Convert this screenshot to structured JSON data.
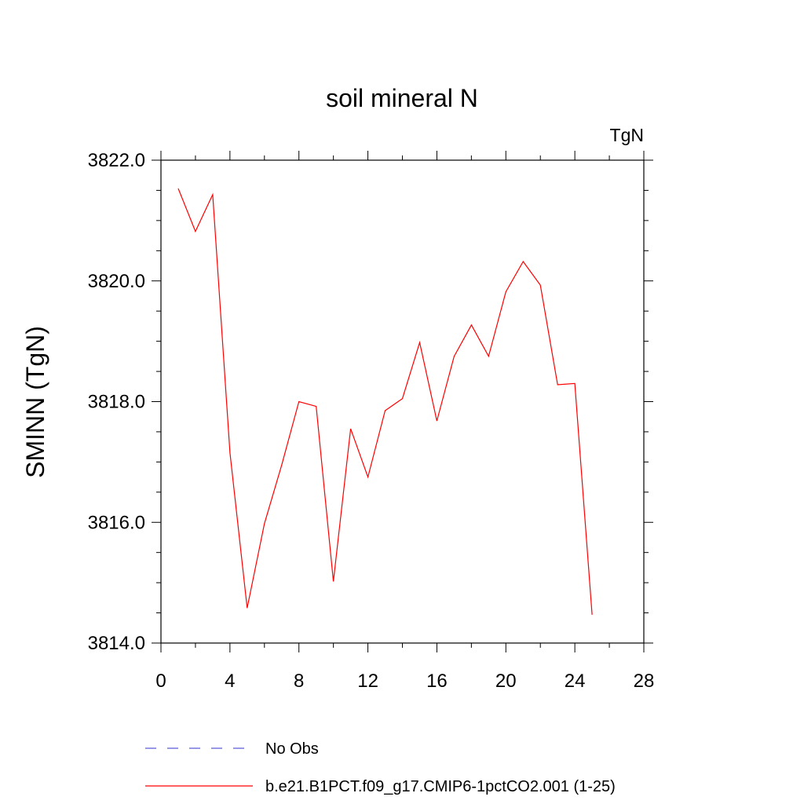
{
  "chart_data": {
    "type": "line",
    "title": "soil mineral N",
    "units_label": "TgN",
    "ylabel": "SMINN  (TgN)",
    "xlabel": "",
    "xlim": [
      0,
      28
    ],
    "ylim": [
      3814.0,
      3822.0
    ],
    "x_ticks": [
      0,
      4,
      8,
      12,
      16,
      20,
      24,
      28
    ],
    "x_tick_labels": [
      "0",
      "4",
      "8",
      "12",
      "16",
      "20",
      "24",
      "28"
    ],
    "y_ticks": [
      3814.0,
      3816.0,
      3818.0,
      3820.0,
      3822.0
    ],
    "y_tick_labels": [
      "3814.0",
      "3816.0",
      "3818.0",
      "3820.0",
      "3822.0"
    ],
    "grid": false,
    "legend_position": "bottom",
    "series": [
      {
        "name": "b.e21.B1PCT.f09_g17.CMIP6-1pctCO2.001 (1-25)",
        "color": "#ff0000",
        "line_style": "solid",
        "x": [
          1,
          2,
          3,
          4,
          5,
          6,
          7,
          8,
          9,
          10,
          11,
          12,
          13,
          14,
          15,
          16,
          17,
          18,
          19,
          20,
          21,
          22,
          23,
          24,
          25
        ],
        "y": [
          3821.53,
          3820.82,
          3821.43,
          3817.15,
          3814.58,
          3815.98,
          3816.95,
          3818.0,
          3817.92,
          3815.02,
          3817.55,
          3816.75,
          3817.85,
          3818.05,
          3818.98,
          3817.68,
          3818.75,
          3819.27,
          3818.75,
          3819.82,
          3820.32,
          3819.93,
          3818.28,
          3818.3,
          3814.47
        ]
      }
    ],
    "legend_entries": [
      {
        "label": "No Obs",
        "color": "#5a5ad8",
        "line_style": "dashed"
      },
      {
        "label": "b.e21.B1PCT.f09_g17.CMIP6-1pctCO2.001 (1-25)",
        "color": "#ff0000",
        "line_style": "solid"
      }
    ]
  }
}
